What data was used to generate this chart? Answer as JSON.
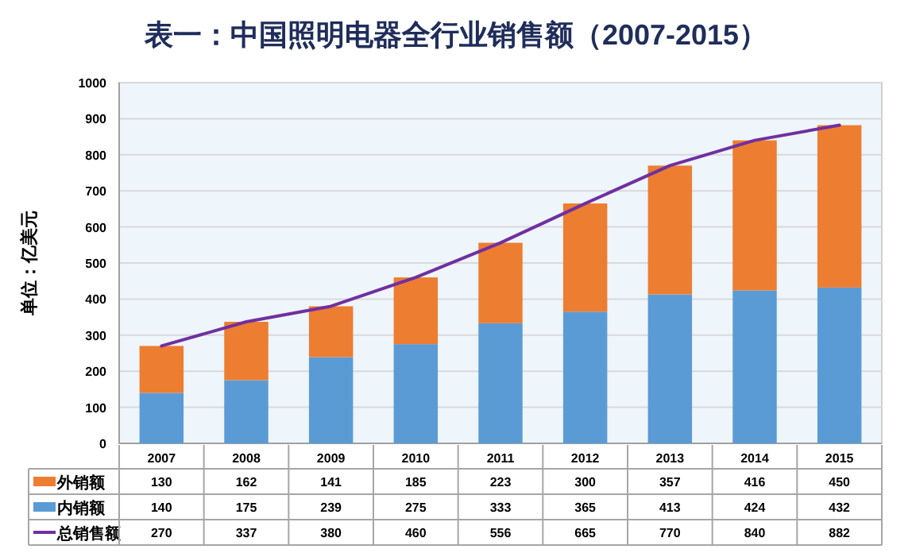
{
  "chart_data": {
    "type": "bar",
    "title": "表一：中国照明电器全行业销售额（2007-2015）",
    "ylabel": "单位：亿美元",
    "categories": [
      "2007",
      "2008",
      "2009",
      "2010",
      "2011",
      "2012",
      "2013",
      "2014",
      "2015"
    ],
    "stacked": true,
    "series": [
      {
        "name": "内销额",
        "color": "#5b9bd5",
        "values": [
          140,
          175,
          239,
          275,
          333,
          365,
          413,
          424,
          432
        ]
      },
      {
        "name": "外销额",
        "color": "#ed7d31",
        "values": [
          130,
          162,
          141,
          185,
          223,
          300,
          357,
          416,
          450
        ]
      },
      {
        "name": "总销售额",
        "type": "line",
        "color": "#7030a0",
        "values": [
          270,
          337,
          380,
          460,
          556,
          665,
          770,
          840,
          882
        ]
      }
    ],
    "ylim": [
      0,
      1000
    ],
    "yticks": [
      0,
      100,
      200,
      300,
      400,
      500,
      600,
      700,
      800,
      900,
      1000
    ],
    "grid": "y",
    "legend": "bottom",
    "data_labels": true
  }
}
